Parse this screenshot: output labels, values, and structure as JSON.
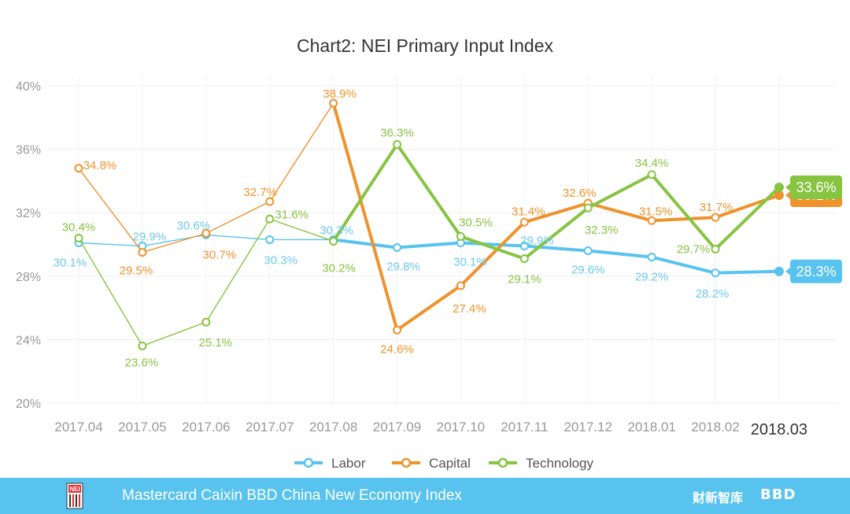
{
  "chart_data": {
    "type": "line",
    "title": "Chart2: NEI Primary Input Index",
    "categories": [
      "2017.04",
      "2017.05",
      "2017.06",
      "2017.07",
      "2017.08",
      "2017.09",
      "2017.10",
      "2017.11",
      "2017.12",
      "2018.01",
      "2018.02",
      "2018.03"
    ],
    "yticks": [
      "20%",
      "24%",
      "28%",
      "32%",
      "36%",
      "40%"
    ],
    "ylim": [
      20,
      40
    ],
    "grid": true,
    "legend_position": "bottom",
    "series": [
      {
        "name": "Labor",
        "color": "#58c3ef",
        "values": [
          30.1,
          29.9,
          30.6,
          30.3,
          30.3,
          29.8,
          30.1,
          29.9,
          29.6,
          29.2,
          28.2,
          28.3
        ],
        "labels": [
          "30.1%",
          "29.9%",
          "30.6%",
          "30.3%",
          "30.3%",
          "29.8%",
          "30.1%",
          "29.9%",
          "29.6%",
          "29.2%",
          "28.2%",
          "28.3%"
        ]
      },
      {
        "name": "Capital",
        "color": "#f0922c",
        "values": [
          34.8,
          29.5,
          30.7,
          32.7,
          38.9,
          24.6,
          27.4,
          31.4,
          32.6,
          31.5,
          31.7,
          33.1
        ],
        "labels": [
          "34.8%",
          "29.5%",
          "30.7%",
          "32.7%",
          "38.9%",
          "24.6%",
          "27.4%",
          "31.4%",
          "32.6%",
          "31.5%",
          "31.7%",
          "33.1%"
        ]
      },
      {
        "name": "Technology",
        "color": "#86c441",
        "values": [
          30.4,
          23.6,
          25.1,
          31.6,
          30.2,
          36.3,
          30.5,
          29.1,
          32.3,
          34.4,
          29.7,
          33.6
        ],
        "labels": [
          "30.4%",
          "23.6%",
          "25.1%",
          "31.6%",
          "30.2%",
          "36.3%",
          "30.5%",
          "29.1%",
          "32.3%",
          "34.4%",
          "29.7%",
          "33.6%"
        ]
      }
    ]
  },
  "footer": {
    "text": "Mastercard Caixin BBD China New Economy Index",
    "brand_cn": "财新智库",
    "brand_bbd": "BBD",
    "logo_icon": "nei-logo-icon",
    "background": "#58c3ef"
  }
}
